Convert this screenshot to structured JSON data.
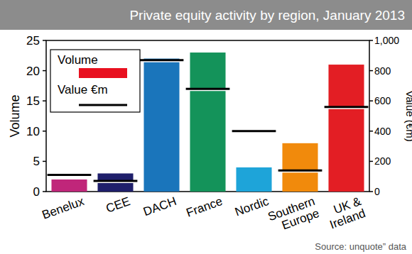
{
  "chart_data": {
    "type": "bar",
    "title": "Private equity activity by region, January 2013",
    "source": "Source: unquote” data",
    "categories": [
      "Benelux",
      "CEE",
      "DACH",
      "France",
      "Nordic",
      "Southern Europe",
      "UK & Ireland"
    ],
    "series": [
      {
        "name": "Volume",
        "type": "bar",
        "color": "#e8101f",
        "colors": [
          "#c0267a",
          "#1f1f6b",
          "#1a75bb",
          "#14935a",
          "#1ea4d9",
          "#f18a0c",
          "#e31e24"
        ],
        "values": [
          2,
          3,
          22,
          23,
          4,
          8,
          21
        ]
      },
      {
        "name": "Value €m",
        "type": "scatter",
        "marker": "hline",
        "color": "#000000",
        "axis": "y2",
        "values": [
          110,
          70,
          870,
          680,
          400,
          140,
          560
        ]
      }
    ],
    "y_label": "Volume",
    "y2_label": "Value (€m)",
    "ylim": [
      0,
      25
    ],
    "yticks": [
      0,
      5,
      10,
      15,
      20,
      25
    ],
    "y2lim": [
      0,
      1000
    ],
    "y2ticks": [
      0,
      200,
      400,
      600,
      800,
      {
        "value": 1000,
        "label": "1,000"
      }
    ],
    "legend": "top-left",
    "grid": false
  }
}
